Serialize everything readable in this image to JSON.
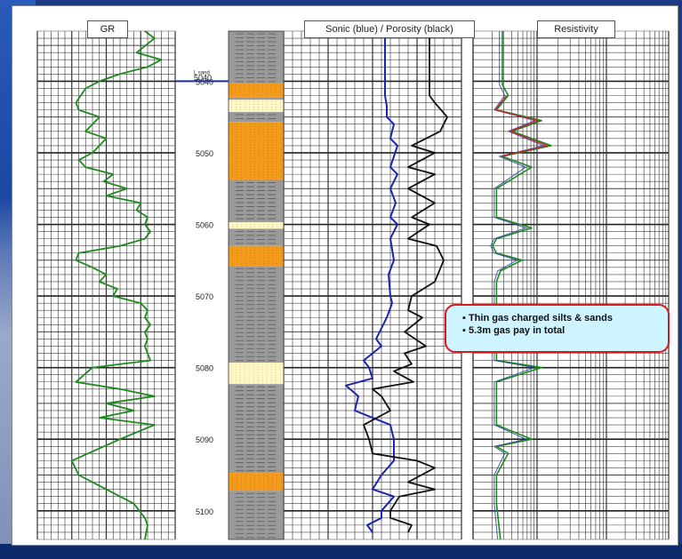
{
  "track_labels": {
    "gr": "GR",
    "sonic_porosity": "Sonic (blue) / Porosity (black)",
    "resistivity": "Resistivity"
  },
  "callout": {
    "line1": "▪ Thin gas charged silts & sands",
    "line2": "▪ 5.3m gas pay in total"
  },
  "colors": {
    "gr_curve": "#1e8a1e",
    "sonic_curve": "#1c24b0",
    "porosity_curve": "#111111",
    "sand": "#f49b1c",
    "silt": "#fff7c4",
    "shale": "#9a9a9a",
    "marker_line": "#1a2da8",
    "callout_border": "#e0161b",
    "callout_fill": "#cdf4ff"
  },
  "chart_data": {
    "type": "line",
    "depth_axis": {
      "ticks": [
        5040,
        5050,
        5060,
        5070,
        5080,
        5090,
        5100
      ],
      "range": [
        5033,
        5104
      ]
    },
    "marker": {
      "name": "L sand",
      "depth": 5040
    },
    "lithology": [
      {
        "type": "shale",
        "top": 5033,
        "base": 5040.2
      },
      {
        "type": "sand",
        "top": 5040.2,
        "base": 5042.3
      },
      {
        "type": "shale",
        "top": 5042.3,
        "base": 5042.6
      },
      {
        "type": "silt",
        "top": 5042.6,
        "base": 5044.3
      },
      {
        "type": "shale",
        "top": 5044.3,
        "base": 5045.7
      },
      {
        "type": "sand",
        "top": 5045.7,
        "base": 5053.8
      },
      {
        "type": "shale",
        "top": 5053.8,
        "base": 5059.7
      },
      {
        "type": "silt",
        "top": 5059.7,
        "base": 5060.6
      },
      {
        "type": "shale",
        "top": 5060.6,
        "base": 5063
      },
      {
        "type": "sand",
        "top": 5063,
        "base": 5065.8
      },
      {
        "type": "shale",
        "top": 5065.8,
        "base": 5079.3
      },
      {
        "type": "silt",
        "top": 5079.3,
        "base": 5082.3
      },
      {
        "type": "shale",
        "top": 5082.3,
        "base": 5094.7
      },
      {
        "type": "sand",
        "top": 5094.7,
        "base": 5097.2
      },
      {
        "type": "shale",
        "top": 5097.2,
        "base": 5104
      }
    ],
    "series": [
      {
        "name": "GR",
        "x": [
          0.78,
          0.85,
          0.72,
          0.9,
          0.8,
          0.6,
          0.45,
          0.35,
          0.28,
          0.3,
          0.45,
          0.35,
          0.5,
          0.4,
          0.3,
          0.35,
          0.55,
          0.48,
          0.65,
          0.5,
          0.75,
          0.72,
          0.8,
          0.78,
          0.82,
          0.78,
          0.6,
          0.3,
          0.28,
          0.4,
          0.5,
          0.45,
          0.58,
          0.55,
          0.75,
          0.8,
          0.78,
          0.82,
          0.78,
          0.8,
          0.78,
          0.82,
          0.4,
          0.28,
          0.6,
          0.85,
          0.5,
          0.7,
          0.45,
          0.85,
          0.6,
          0.25,
          0.3,
          0.5,
          0.7,
          0.78,
          0.8,
          0.78
        ],
        "depth": [
          5033,
          5034,
          5036,
          5037,
          5038,
          5039,
          5040,
          5041,
          5043,
          5044,
          5045,
          5047,
          5048,
          5050,
          5051,
          5052,
          5053,
          5054,
          5055,
          5056,
          5057,
          5058,
          5059,
          5060,
          5061,
          5062,
          5063,
          5064,
          5065,
          5066,
          5067,
          5068,
          5069,
          5070,
          5071,
          5072,
          5073,
          5074,
          5075,
          5076,
          5077,
          5079,
          5080,
          5082,
          5083,
          5084,
          5085,
          5086,
          5087,
          5088,
          5090,
          5093,
          5095,
          5097,
          5099,
          5101,
          5102,
          5104
        ]
      },
      {
        "name": "Sonic",
        "x": [
          0.57,
          0.57,
          0.57,
          0.58,
          0.58,
          0.62,
          0.6,
          0.64,
          0.6,
          0.64,
          0.6,
          0.63,
          0.6,
          0.64,
          0.6,
          0.62,
          0.59,
          0.6,
          0.61,
          0.58,
          0.56,
          0.52,
          0.55,
          0.45,
          0.48,
          0.5,
          0.35,
          0.42,
          0.4,
          0.6,
          0.62,
          0.62,
          0.55,
          0.5,
          0.62,
          0.55,
          0.55,
          0.47,
          0.5
        ],
        "depth": [
          5033,
          5040,
          5042,
          5043.5,
          5045,
          5046,
          5048,
          5049,
          5052,
          5053,
          5055,
          5057,
          5059,
          5060,
          5062,
          5065,
          5067,
          5070,
          5071,
          5073,
          5074,
          5076,
          5077,
          5079,
          5080,
          5081.5,
          5082.5,
          5084,
          5086,
          5088,
          5090,
          5093,
          5095,
          5097,
          5098,
          5100,
          5101,
          5102,
          5103
        ]
      },
      {
        "name": "Porosity",
        "x": [
          0.82,
          0.82,
          0.82,
          0.85,
          0.92,
          0.88,
          0.72,
          0.85,
          0.7,
          0.85,
          0.7,
          0.85,
          0.72,
          0.82,
          0.7,
          0.86,
          0.9,
          0.85,
          0.72,
          0.7,
          0.78,
          0.68,
          0.8,
          0.68,
          0.72,
          0.62,
          0.73,
          0.5,
          0.55,
          0.6,
          0.45,
          0.48,
          0.5,
          0.75,
          0.85,
          0.7,
          0.85,
          0.65,
          0.6,
          0.6,
          0.72,
          0.7
        ],
        "depth": [
          5033,
          5040,
          5042,
          5043,
          5045,
          5047,
          5049,
          5050,
          5052,
          5053,
          5055,
          5057,
          5059,
          5060,
          5062,
          5063,
          5065,
          5068,
          5070,
          5072,
          5073,
          5075,
          5077,
          5078,
          5079.5,
          5080.5,
          5082,
          5083,
          5084,
          5086,
          5088,
          5090,
          5092,
          5093,
          5094,
          5096,
          5097,
          5098,
          5100,
          5101,
          5102,
          5103
        ]
      },
      {
        "name": "Resistivity",
        "x": [
          0.15,
          0.15,
          0.15,
          0.18,
          0.12,
          0.35,
          0.2,
          0.4,
          0.15,
          0.3,
          0.12,
          0.12,
          0.12,
          0.3,
          0.12,
          0.1,
          0.12,
          0.25,
          0.14,
          0.12,
          0.12,
          0.12,
          0.12,
          0.35,
          0.12,
          0.12,
          0.12,
          0.3,
          0.12,
          0.18,
          0.12,
          0.12,
          0.12,
          0.14
        ],
        "depth": [
          5033,
          5038,
          5040.5,
          5042,
          5044,
          5045.5,
          5047,
          5049,
          5050.5,
          5052,
          5055,
          5057.5,
          5059,
          5060.5,
          5062,
          5063,
          5064,
          5065,
          5066.5,
          5068,
          5072,
          5076,
          5079,
          5080,
          5082,
          5085,
          5088,
          5090,
          5091,
          5092,
          5095,
          5096,
          5099,
          5104
        ]
      }
    ]
  }
}
